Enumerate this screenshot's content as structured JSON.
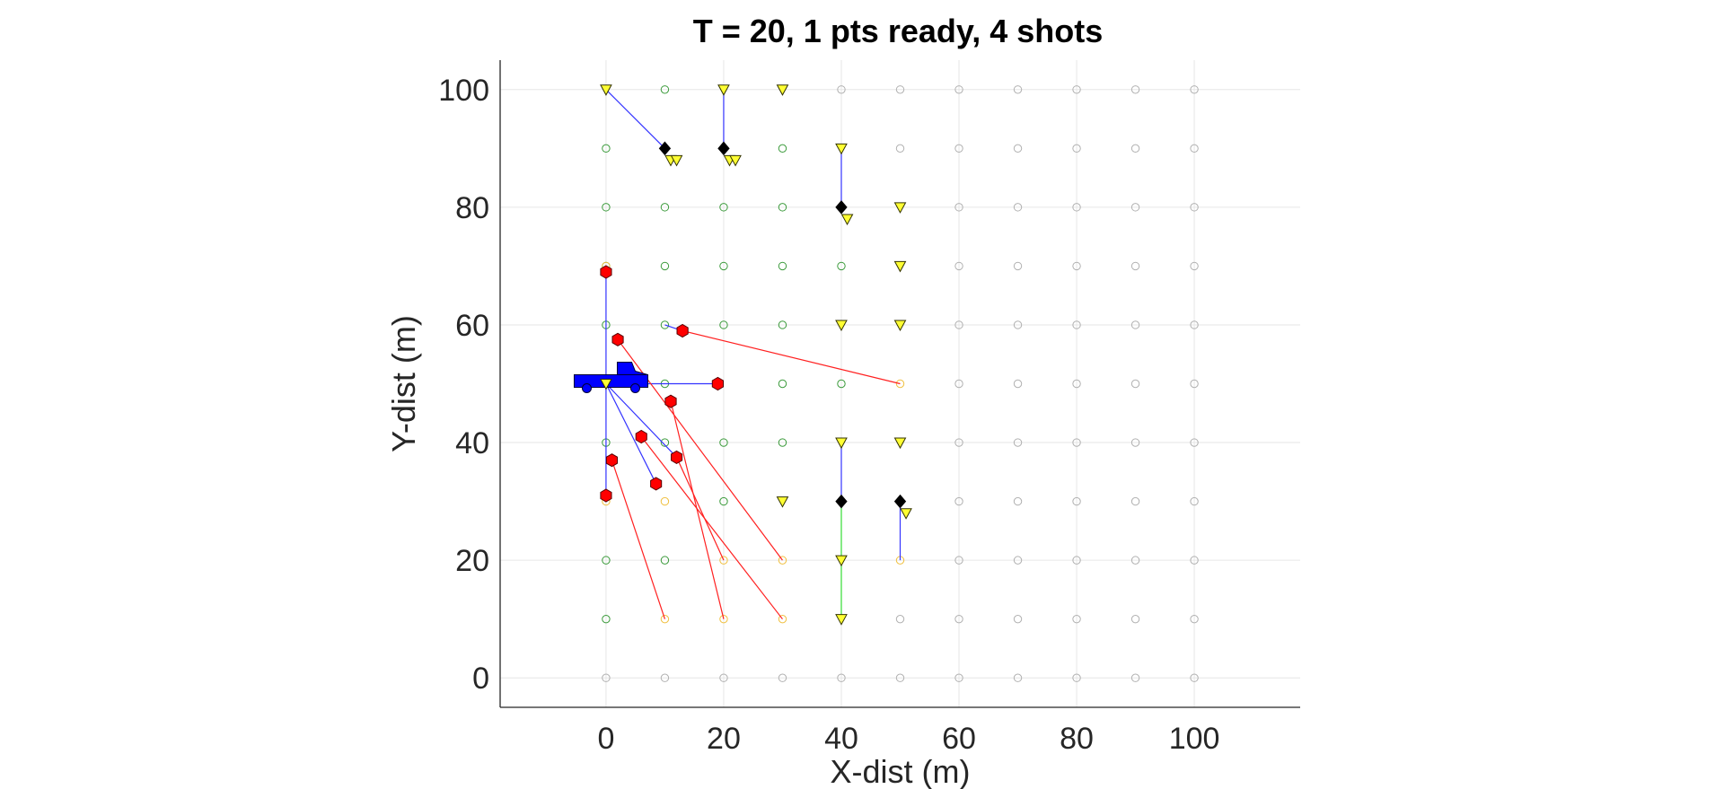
{
  "chart_data": {
    "type": "scatter",
    "title": "T = 20, 1 pts ready, 4 shots",
    "xlabel": "X-dist (m)",
    "ylabel": "Y-dist (m)",
    "xlim": [
      -18,
      118
    ],
    "ylim": [
      -5,
      105
    ],
    "xticks": [
      0,
      20,
      40,
      60,
      80,
      100
    ],
    "yticks": [
      0,
      20,
      40,
      60,
      80,
      100
    ],
    "grid": true,
    "colors": {
      "grid_point_gray": "#b0b0b0",
      "grid_point_green": "#3a9a3a",
      "grid_point_orange": "#f0c040",
      "enemy_red": "#ff0000",
      "blue_line": "#3333ff",
      "red_line": "#ff2020",
      "green_line": "#33dd33",
      "marker_yellow": "#ffff33",
      "diamond_black": "#000000",
      "truck_blue": "#0000ff"
    },
    "grid_points": {
      "gray": [
        [
          0,
          0
        ],
        [
          10,
          0
        ],
        [
          20,
          0
        ],
        [
          30,
          0
        ],
        [
          40,
          0
        ],
        [
          50,
          0
        ],
        [
          60,
          0
        ],
        [
          70,
          0
        ],
        [
          80,
          0
        ],
        [
          90,
          0
        ],
        [
          100,
          0
        ],
        [
          50,
          10
        ],
        [
          60,
          10
        ],
        [
          70,
          10
        ],
        [
          80,
          10
        ],
        [
          90,
          10
        ],
        [
          100,
          10
        ],
        [
          60,
          20
        ],
        [
          70,
          20
        ],
        [
          80,
          20
        ],
        [
          90,
          20
        ],
        [
          100,
          20
        ],
        [
          60,
          30
        ],
        [
          70,
          30
        ],
        [
          80,
          30
        ],
        [
          90,
          30
        ],
        [
          100,
          30
        ],
        [
          60,
          40
        ],
        [
          70,
          40
        ],
        [
          80,
          40
        ],
        [
          90,
          40
        ],
        [
          100,
          40
        ],
        [
          60,
          50
        ],
        [
          70,
          50
        ],
        [
          80,
          50
        ],
        [
          90,
          50
        ],
        [
          100,
          50
        ],
        [
          60,
          60
        ],
        [
          70,
          60
        ],
        [
          80,
          60
        ],
        [
          90,
          60
        ],
        [
          100,
          60
        ],
        [
          60,
          70
        ],
        [
          70,
          70
        ],
        [
          80,
          70
        ],
        [
          90,
          70
        ],
        [
          100,
          70
        ],
        [
          60,
          80
        ],
        [
          70,
          80
        ],
        [
          80,
          80
        ],
        [
          90,
          80
        ],
        [
          100,
          80
        ],
        [
          50,
          90
        ],
        [
          60,
          90
        ],
        [
          70,
          90
        ],
        [
          80,
          90
        ],
        [
          90,
          90
        ],
        [
          100,
          90
        ],
        [
          40,
          100
        ],
        [
          50,
          100
        ],
        [
          60,
          100
        ],
        [
          70,
          100
        ],
        [
          80,
          100
        ],
        [
          90,
          100
        ],
        [
          100,
          100
        ]
      ],
      "green": [
        [
          0,
          10
        ],
        [
          0,
          20
        ],
        [
          10,
          20
        ],
        [
          20,
          30
        ],
        [
          0,
          40
        ],
        [
          10,
          40
        ],
        [
          20,
          40
        ],
        [
          30,
          40
        ],
        [
          30,
          50
        ],
        [
          40,
          50
        ],
        [
          0,
          60
        ],
        [
          10,
          60
        ],
        [
          20,
          60
        ],
        [
          30,
          60
        ],
        [
          0,
          70
        ],
        [
          10,
          70
        ],
        [
          20,
          70
        ],
        [
          30,
          70
        ],
        [
          40,
          70
        ],
        [
          0,
          80
        ],
        [
          10,
          80
        ],
        [
          20,
          80
        ],
        [
          30,
          80
        ],
        [
          0,
          90
        ],
        [
          30,
          90
        ],
        [
          10,
          100
        ],
        [
          10,
          50
        ]
      ],
      "orange": [
        [
          10,
          10
        ],
        [
          20,
          10
        ],
        [
          30,
          10
        ],
        [
          20,
          20
        ],
        [
          30,
          20
        ],
        [
          50,
          20
        ],
        [
          0,
          30
        ],
        [
          10,
          30
        ],
        [
          50,
          50
        ],
        [
          0,
          70
        ]
      ]
    },
    "yellow_markers": [
      [
        0,
        100
      ],
      [
        20,
        100
      ],
      [
        30,
        100
      ],
      [
        11,
        88
      ],
      [
        12,
        88
      ],
      [
        21,
        88
      ],
      [
        22,
        88
      ],
      [
        40,
        90
      ],
      [
        41,
        78
      ],
      [
        50,
        80
      ],
      [
        50,
        70
      ],
      [
        40,
        60
      ],
      [
        50,
        60
      ],
      [
        40,
        40
      ],
      [
        50,
        40
      ],
      [
        30,
        30
      ],
      [
        51,
        28
      ],
      [
        40,
        20
      ],
      [
        40,
        10
      ],
      [
        0,
        50
      ]
    ],
    "black_diamonds": [
      [
        10,
        90
      ],
      [
        20,
        90
      ],
      [
        40,
        80
      ],
      [
        40,
        30
      ],
      [
        50,
        30
      ]
    ],
    "red_markers": [
      [
        0,
        69
      ],
      [
        2,
        57.5
      ],
      [
        13,
        59
      ],
      [
        19,
        50
      ],
      [
        11,
        47
      ],
      [
        6,
        41
      ],
      [
        12,
        37.5
      ],
      [
        1,
        37
      ],
      [
        8.5,
        33
      ],
      [
        0,
        31
      ]
    ],
    "truck": {
      "x": 1,
      "y": 50
    },
    "blue_lines": [
      [
        [
          0,
          100
        ],
        [
          10,
          90
        ]
      ],
      [
        [
          20,
          100
        ],
        [
          20,
          90
        ]
      ],
      [
        [
          40,
          90
        ],
        [
          40,
          80
        ]
      ],
      [
        [
          0,
          69
        ],
        [
          0,
          31
        ]
      ],
      [
        [
          0,
          50
        ],
        [
          19,
          50
        ]
      ],
      [
        [
          0,
          50
        ],
        [
          8.5,
          33
        ]
      ],
      [
        [
          0,
          50
        ],
        [
          12,
          37.5
        ]
      ],
      [
        [
          10,
          60
        ],
        [
          13,
          59
        ]
      ],
      [
        [
          40,
          40
        ],
        [
          40,
          30
        ]
      ],
      [
        [
          50,
          30
        ],
        [
          50,
          20
        ]
      ]
    ],
    "red_lines": [
      [
        [
          13,
          59
        ],
        [
          50,
          50
        ]
      ],
      [
        [
          2,
          57.5
        ],
        [
          30,
          20
        ]
      ],
      [
        [
          11,
          47
        ],
        [
          20,
          10
        ]
      ],
      [
        [
          6,
          41
        ],
        [
          30,
          10
        ]
      ],
      [
        [
          12,
          37.5
        ],
        [
          20,
          20
        ]
      ],
      [
        [
          1,
          37
        ],
        [
          10,
          10
        ]
      ],
      [
        [
          0,
          31
        ],
        [
          0,
          30
        ]
      ]
    ],
    "green_lines": [
      [
        [
          40,
          30
        ],
        [
          40,
          10
        ]
      ]
    ]
  }
}
